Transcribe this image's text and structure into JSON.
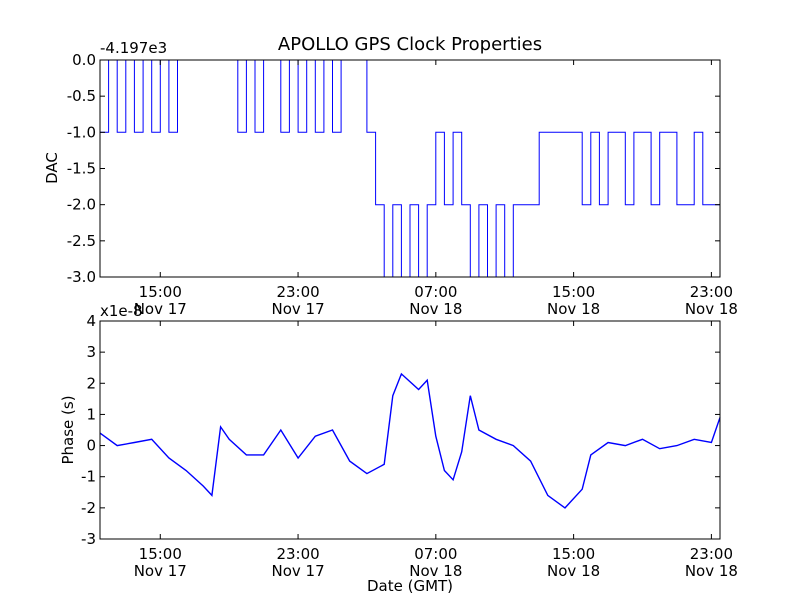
{
  "chart_data": [
    {
      "type": "line",
      "title": "APOLLO GPS Clock Properties",
      "ylabel": "DAC",
      "offset_text": "-4.197e3",
      "ylim": [
        -3.0,
        0.0
      ],
      "yticks": [
        "0.0",
        "-0.5",
        "-1.0",
        "-1.5",
        "-2.0",
        "-2.5",
        "-3.0"
      ],
      "ytick_values": [
        0,
        -0.5,
        -1.0,
        -1.5,
        -2.0,
        -2.5,
        -3.0
      ],
      "xlim": [
        "Nov 17 11:30",
        "Nov 18 23:30"
      ],
      "xticks": [
        {
          "time": "15:00",
          "date": "Nov 17"
        },
        {
          "time": "23:00",
          "date": "Nov 17"
        },
        {
          "time": "07:00",
          "date": "Nov 18"
        },
        {
          "time": "15:00",
          "date": "Nov 18"
        },
        {
          "time": "23:00",
          "date": "Nov 18"
        }
      ],
      "series_color": "#0000ff",
      "series": [
        {
          "points": [
            [
              "Nov 17 11:30",
              -1.0
            ],
            [
              "Nov 17 12:00",
              0.0
            ],
            [
              "Nov 17 12:30",
              -1.0
            ],
            [
              "Nov 17 13:00",
              0.0
            ],
            [
              "Nov 17 13:30",
              -1.0
            ],
            [
              "Nov 17 14:00",
              0.0
            ],
            [
              "Nov 17 14:30",
              -1.0
            ],
            [
              "Nov 17 15:00",
              0.0
            ],
            [
              "Nov 17 15:30",
              -1.0
            ],
            [
              "Nov 17 16:00",
              0.0
            ],
            [
              "Nov 17 19:00",
              0.0
            ],
            [
              "Nov 17 19:30",
              -1.0
            ],
            [
              "Nov 17 20:00",
              0.0
            ],
            [
              "Nov 17 20:30",
              -1.0
            ],
            [
              "Nov 17 21:00",
              0.0
            ],
            [
              "Nov 17 22:00",
              -1.0
            ],
            [
              "Nov 17 22:30",
              0.0
            ],
            [
              "Nov 17 23:00",
              -1.0
            ],
            [
              "Nov 17 23:30",
              0.0
            ],
            [
              "Nov 18 00:00",
              -1.0
            ],
            [
              "Nov 18 00:30",
              0.0
            ],
            [
              "Nov 18 01:00",
              -1.0
            ],
            [
              "Nov 18 01:30",
              0.0
            ],
            [
              "Nov 18 02:30",
              0.0
            ],
            [
              "Nov 18 03:00",
              -1.0
            ],
            [
              "Nov 18 03:30",
              -2.0
            ],
            [
              "Nov 18 04:00",
              -3.0
            ],
            [
              "Nov 18 04:30",
              -2.0
            ],
            [
              "Nov 18 05:00",
              -3.0
            ],
            [
              "Nov 18 05:30",
              -2.0
            ],
            [
              "Nov 18 06:00",
              -3.0
            ],
            [
              "Nov 18 06:30",
              -2.0
            ],
            [
              "Nov 18 07:00",
              -1.0
            ],
            [
              "Nov 18 07:30",
              -2.0
            ],
            [
              "Nov 18 08:00",
              -1.0
            ],
            [
              "Nov 18 08:30",
              -2.0
            ],
            [
              "Nov 18 09:00",
              -3.0
            ],
            [
              "Nov 18 09:30",
              -2.0
            ],
            [
              "Nov 18 10:00",
              -3.0
            ],
            [
              "Nov 18 10:30",
              -2.0
            ],
            [
              "Nov 18 11:00",
              -3.0
            ],
            [
              "Nov 18 11:30",
              -2.0
            ],
            [
              "Nov 18 13:00",
              -1.0
            ],
            [
              "Nov 18 15:00",
              -1.0
            ],
            [
              "Nov 18 15:30",
              -2.0
            ],
            [
              "Nov 18 16:00",
              -1.0
            ],
            [
              "Nov 18 16:30",
              -2.0
            ],
            [
              "Nov 18 17:00",
              -1.0
            ],
            [
              "Nov 18 18:00",
              -2.0
            ],
            [
              "Nov 18 18:30",
              -1.0
            ],
            [
              "Nov 18 19:30",
              -2.0
            ],
            [
              "Nov 18 20:00",
              -1.0
            ],
            [
              "Nov 18 21:00",
              -2.0
            ],
            [
              "Nov 18 22:00",
              -1.0
            ],
            [
              "Nov 18 22:30",
              -2.0
            ],
            [
              "Nov 18 23:30",
              -2.0
            ]
          ]
        }
      ]
    },
    {
      "type": "line",
      "ylabel": "Phase (s)",
      "xlabel": "Date (GMT)",
      "offset_text": "x1e-8",
      "ylim": [
        -3,
        4
      ],
      "yticks": [
        "4",
        "3",
        "2",
        "1",
        "0",
        "-1",
        "-2",
        "-3"
      ],
      "ytick_values": [
        4,
        3,
        2,
        1,
        0,
        -1,
        -2,
        -3
      ],
      "xlim": [
        "Nov 17 11:30",
        "Nov 18 23:30"
      ],
      "xticks": [
        {
          "time": "15:00",
          "date": "Nov 17"
        },
        {
          "time": "23:00",
          "date": "Nov 17"
        },
        {
          "time": "07:00",
          "date": "Nov 18"
        },
        {
          "time": "15:00",
          "date": "Nov 18"
        },
        {
          "time": "23:00",
          "date": "Nov 18"
        }
      ],
      "series_color": "#0000ff",
      "series": [
        {
          "points": [
            [
              "Nov 17 11:30",
              0.4
            ],
            [
              "Nov 17 12:30",
              0.0
            ],
            [
              "Nov 17 13:30",
              0.1
            ],
            [
              "Nov 17 14:30",
              0.2
            ],
            [
              "Nov 17 15:30",
              -0.4
            ],
            [
              "Nov 17 16:30",
              -0.8
            ],
            [
              "Nov 17 17:30",
              -1.3
            ],
            [
              "Nov 17 18:00",
              -1.6
            ],
            [
              "Nov 17 18:30",
              0.6
            ],
            [
              "Nov 17 19:00",
              0.2
            ],
            [
              "Nov 17 20:00",
              -0.3
            ],
            [
              "Nov 17 21:00",
              -0.3
            ],
            [
              "Nov 17 22:00",
              0.5
            ],
            [
              "Nov 17 23:00",
              -0.4
            ],
            [
              "Nov 18 00:00",
              0.3
            ],
            [
              "Nov 18 01:00",
              0.5
            ],
            [
              "Nov 18 02:00",
              -0.5
            ],
            [
              "Nov 18 03:00",
              -0.9
            ],
            [
              "Nov 18 04:00",
              -0.6
            ],
            [
              "Nov 18 04:30",
              1.6
            ],
            [
              "Nov 18 05:00",
              2.3
            ],
            [
              "Nov 18 06:00",
              1.8
            ],
            [
              "Nov 18 06:30",
              2.1
            ],
            [
              "Nov 18 07:00",
              0.3
            ],
            [
              "Nov 18 07:30",
              -0.8
            ],
            [
              "Nov 18 08:00",
              -1.1
            ],
            [
              "Nov 18 08:30",
              -0.2
            ],
            [
              "Nov 18 09:00",
              1.6
            ],
            [
              "Nov 18 09:30",
              0.5
            ],
            [
              "Nov 18 10:30",
              0.2
            ],
            [
              "Nov 18 11:30",
              0.0
            ],
            [
              "Nov 18 12:30",
              -0.5
            ],
            [
              "Nov 18 13:30",
              -1.6
            ],
            [
              "Nov 18 14:30",
              -2.0
            ],
            [
              "Nov 18 15:30",
              -1.4
            ],
            [
              "Nov 18 16:00",
              -0.3
            ],
            [
              "Nov 18 17:00",
              0.1
            ],
            [
              "Nov 18 18:00",
              0.0
            ],
            [
              "Nov 18 19:00",
              0.2
            ],
            [
              "Nov 18 20:00",
              -0.1
            ],
            [
              "Nov 18 21:00",
              0.0
            ],
            [
              "Nov 18 22:00",
              0.2
            ],
            [
              "Nov 18 23:00",
              0.1
            ],
            [
              "Nov 18 23:30",
              0.9
            ]
          ]
        }
      ]
    }
  ]
}
